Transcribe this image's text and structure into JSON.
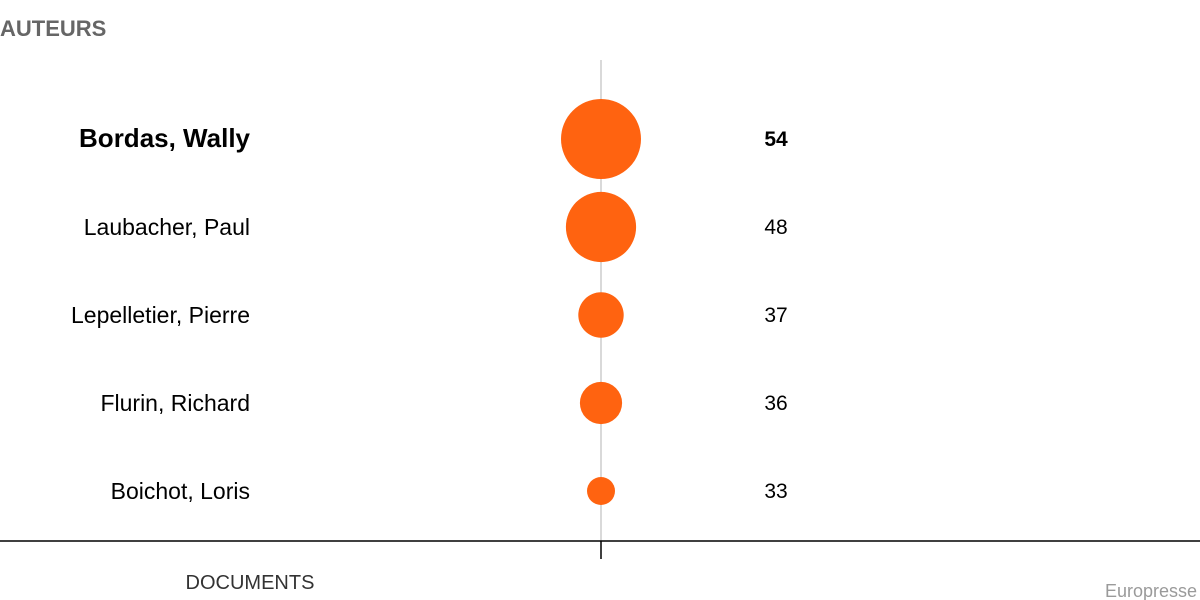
{
  "title": "AUTEURS",
  "source": "Europresse",
  "colors": {
    "bubble": "#ff6310",
    "center_line": "#d9d9d9",
    "axis": "#000000"
  },
  "chart_data": {
    "type": "scatter",
    "title": "AUTEURS",
    "xlabel": "DOCUMENTS",
    "categories": [
      "Bordas, Wally",
      "Laubacher, Paul",
      "Lepelletier, Pierre",
      "Flurin, Richard",
      "Boichot, Loris"
    ],
    "values": [
      54,
      48,
      37,
      36,
      33
    ],
    "highlight_index": 0,
    "encoding": "bubble size",
    "grid": false
  }
}
